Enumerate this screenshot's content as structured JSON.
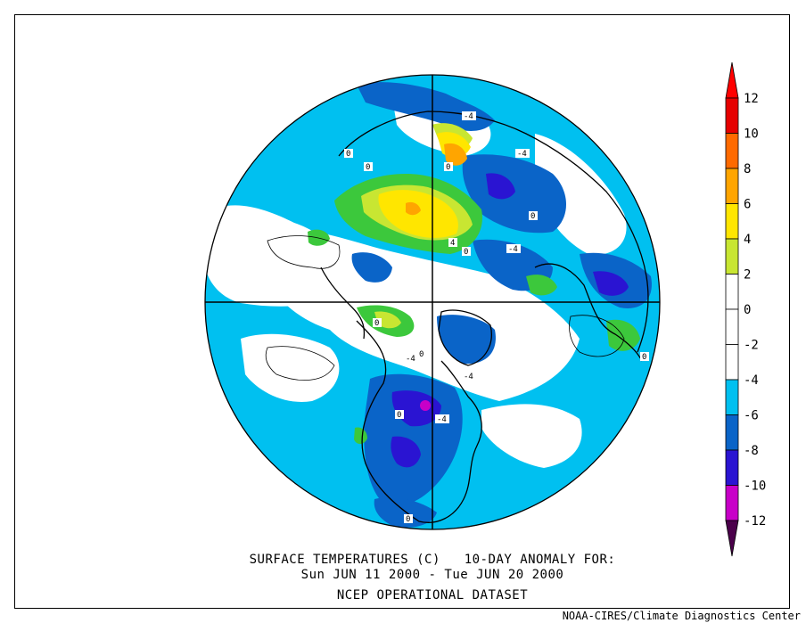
{
  "title": {
    "line1": "SURFACE TEMPERATURES (C)   10-DAY ANOMALY FOR:",
    "line2": "Sun JUN 11 2000 - Tue JUN 20 2000",
    "line3": "NCEP OPERATIONAL DATASET"
  },
  "credit": "NOAA-CIRES/Climate Diagnostics Center",
  "colorbar": {
    "levels": [
      {
        "label": "12",
        "color": "#e60000"
      },
      {
        "label": "10",
        "color": "#ff6a00"
      },
      {
        "label": "8",
        "color": "#ffa500"
      },
      {
        "label": "6",
        "color": "#ffe600"
      },
      {
        "label": "4",
        "color": "#c8e632"
      },
      {
        "label": "2",
        "color": "#3cc83c"
      },
      {
        "label": "0",
        "color": "#ffffff"
      },
      {
        "label": "-2",
        "color": "#ffffff"
      },
      {
        "label": "-4",
        "color": "#00c0f0"
      },
      {
        "label": "-6",
        "color": "#0a64c8"
      },
      {
        "label": "-8",
        "color": "#2a14d2"
      },
      {
        "label": "-10",
        "color": "#c800c8"
      },
      {
        "label": "-12",
        "color": "#8c008c"
      }
    ],
    "top_color": "#ff0000",
    "bottom_color": "#4b004b"
  },
  "contour_labels": [
    "-4",
    "0",
    "0",
    "-4",
    "0",
    "4",
    "0",
    "-4",
    "0",
    "0",
    "-4",
    "0",
    "-4",
    "0",
    "-4",
    "0",
    "0"
  ],
  "colors": {
    "ocean_cool": "#00c0f0",
    "neutral": "#ffffff",
    "cold_blue": "#0a64c8",
    "very_cold": "#2a14d2",
    "warm_green": "#3cc83c",
    "warm_lime": "#c8e632",
    "warm_yellow": "#ffe600",
    "warm_orange": "#ffa500"
  }
}
